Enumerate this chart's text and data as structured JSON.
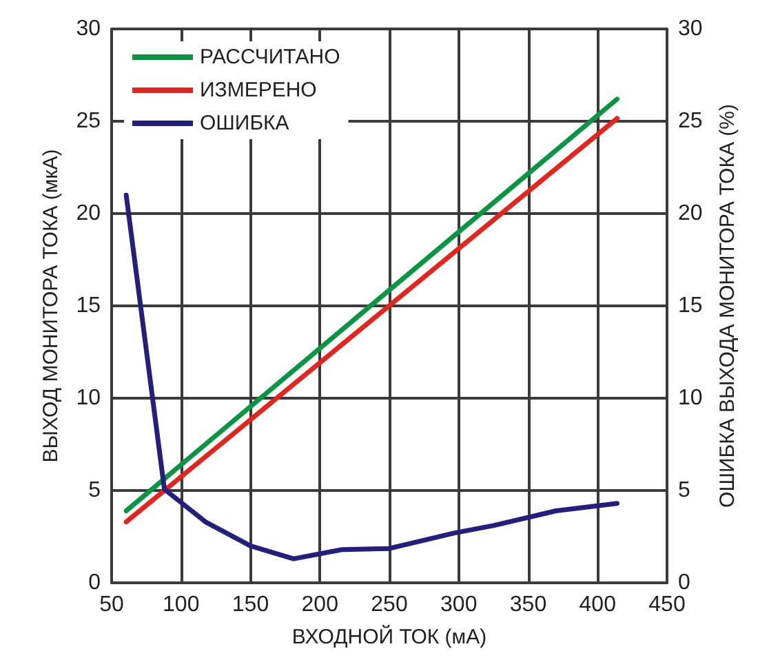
{
  "chart_data": {
    "type": "line",
    "xlabel": "ВХОДНОЙ ТОК (мА)",
    "ylabel": "ВЫХОД МОНИТОРА ТОКА (мкА)",
    "y2label": "ОШИБКА ВЫХОДА МОНИТОРА ТОКА (%)",
    "xlim": [
      50,
      450
    ],
    "xticks": [
      50,
      100,
      150,
      200,
      250,
      300,
      350,
      400,
      450
    ],
    "ylim": [
      0,
      30
    ],
    "yticks": [
      0,
      5,
      10,
      15,
      20,
      25,
      30
    ],
    "y2lim": [
      0,
      30
    ],
    "y2ticks": [
      0,
      5,
      10,
      15,
      20,
      25,
      30
    ],
    "grid": true,
    "legend": "top left",
    "marker": "none",
    "line_style": "solid",
    "series": [
      {
        "name": "РАССЧИТАНО",
        "color": "#0b9444",
        "x": [
          60.5,
          414
        ],
        "values": [
          3.9,
          26.2
        ]
      },
      {
        "name": "ИЗМЕРЕНО",
        "color": "#e0261f",
        "x": [
          60.5,
          414
        ],
        "values": [
          3.3,
          25.15
        ]
      },
      {
        "name": "ОШИБКА",
        "color": "#231f7a",
        "axis": "y2",
        "x": [
          60.5,
          88,
          117.6,
          150,
          181,
          216,
          250,
          297,
          325,
          370,
          414
        ],
        "values": [
          21.0,
          5.07,
          3.3,
          2.0,
          1.3,
          1.8,
          1.86,
          2.7,
          3.1,
          3.9,
          4.3
        ]
      }
    ]
  }
}
